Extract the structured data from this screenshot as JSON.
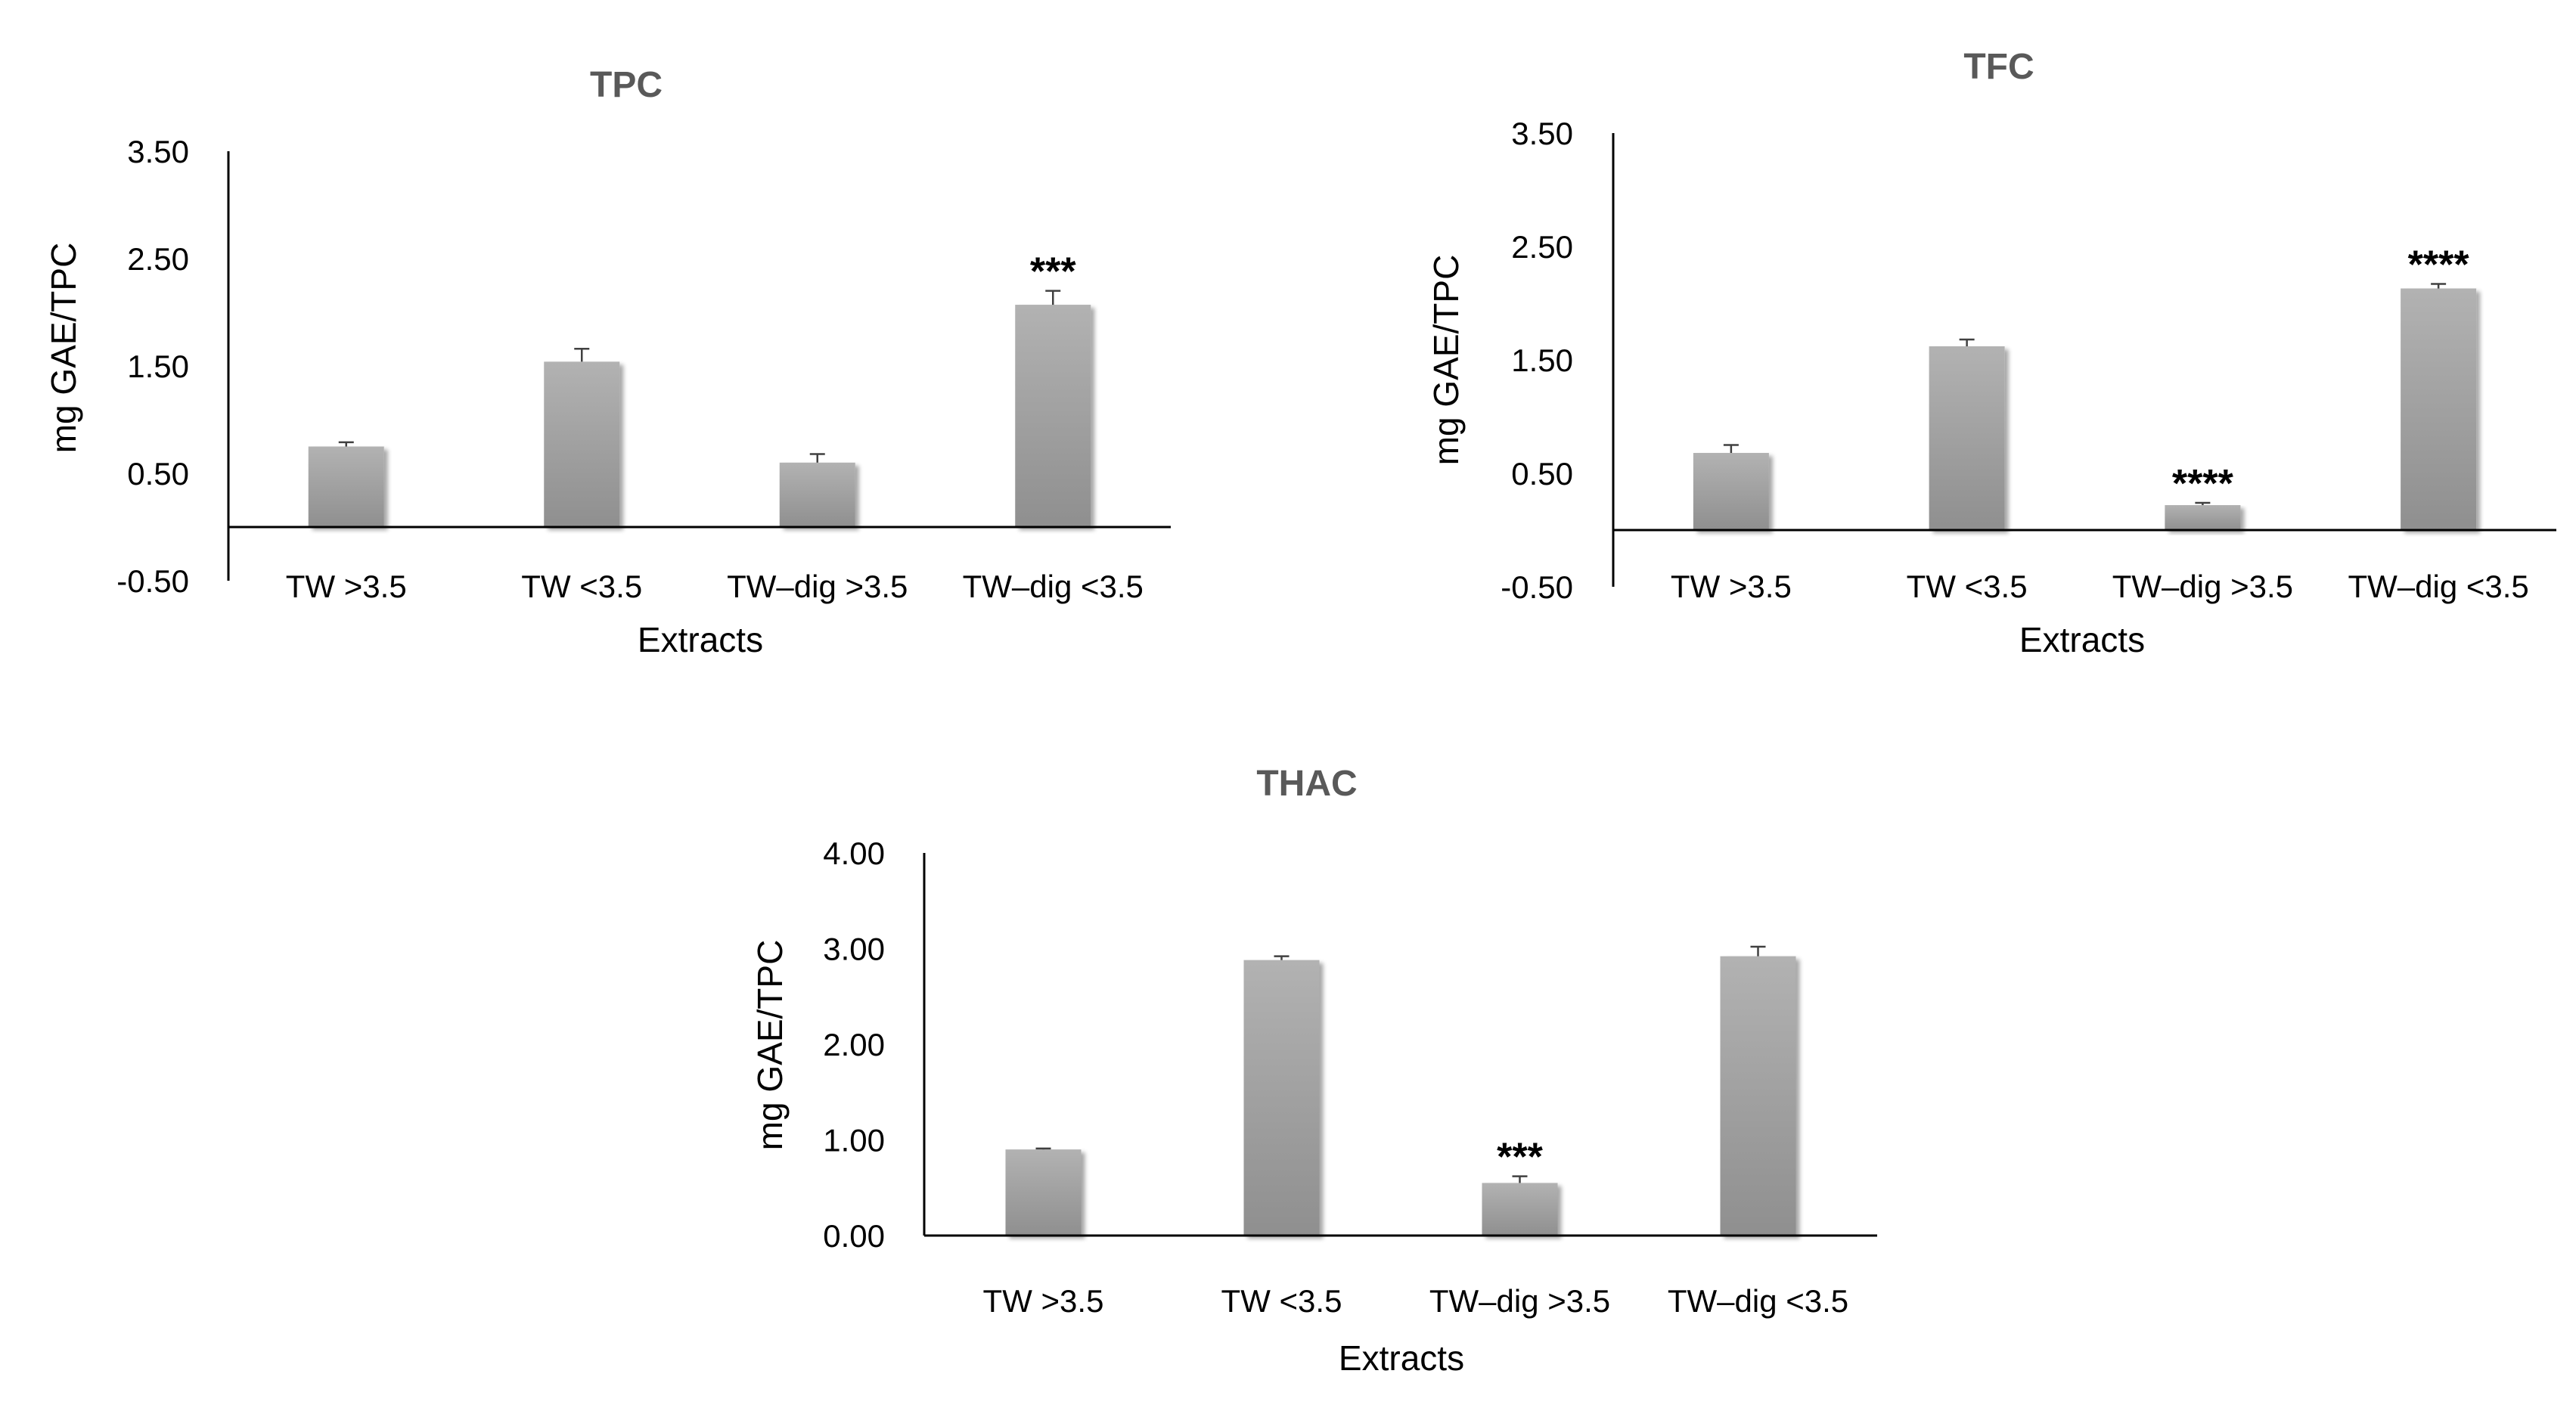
{
  "figure": {
    "bar_color": "#a6a6a6",
    "bar_shadow_color": "#8c8c8c",
    "axis_color": "#000000",
    "title_color": "#595959"
  },
  "chart_data": [
    {
      "id": "tpc",
      "type": "bar",
      "title": "TPC",
      "xlabel": "Extracts",
      "ylabel": "mg GAE/TPC",
      "categories": [
        "TW >3.5",
        "TW <3.5",
        "TW–dig >3.5",
        "TW–dig <3.5"
      ],
      "values": [
        0.75,
        1.54,
        0.6,
        2.07
      ],
      "errors": [
        0.04,
        0.12,
        0.08,
        0.13
      ],
      "annotations": [
        "",
        "",
        "",
        "***"
      ],
      "ylim": [
        -0.5,
        3.5
      ],
      "yticks": [
        -0.5,
        0.5,
        1.5,
        2.5,
        3.5
      ],
      "ytick_labels": [
        "-0.50",
        "0.50",
        "1.50",
        "2.50",
        "3.50"
      ],
      "grid": false
    },
    {
      "id": "tfc",
      "type": "bar",
      "title": "TFC",
      "xlabel": "Extracts",
      "ylabel": "mg GAE/TPC",
      "categories": [
        "TW >3.5",
        "TW <3.5",
        "TW–dig >3.5",
        "TW–dig <3.5"
      ],
      "values": [
        0.68,
        1.62,
        0.22,
        2.13
      ],
      "errors": [
        0.07,
        0.06,
        0.02,
        0.04
      ],
      "annotations": [
        "",
        "",
        "****",
        "****"
      ],
      "ylim": [
        -0.5,
        3.5
      ],
      "yticks": [
        -0.5,
        0.5,
        1.5,
        2.5,
        3.5
      ],
      "ytick_labels": [
        "-0.50",
        "0.50",
        "1.50",
        "2.50",
        "3.50"
      ],
      "grid": false
    },
    {
      "id": "thac",
      "type": "bar",
      "title": "THAC",
      "xlabel": "Extracts",
      "ylabel": "mg GAE/TPC",
      "categories": [
        "TW >3.5",
        "TW <3.5",
        "TW–dig >3.5",
        "TW–dig <3.5"
      ],
      "values": [
        0.9,
        2.88,
        0.55,
        2.92
      ],
      "errors": [
        0.01,
        0.04,
        0.07,
        0.1
      ],
      "annotations": [
        "",
        "",
        "***",
        ""
      ],
      "ylim": [
        0,
        4
      ],
      "yticks": [
        0,
        1,
        2,
        3,
        4
      ],
      "ytick_labels": [
        "0.00",
        "1.00",
        "2.00",
        "3.00",
        "4.00"
      ],
      "grid": false
    }
  ]
}
